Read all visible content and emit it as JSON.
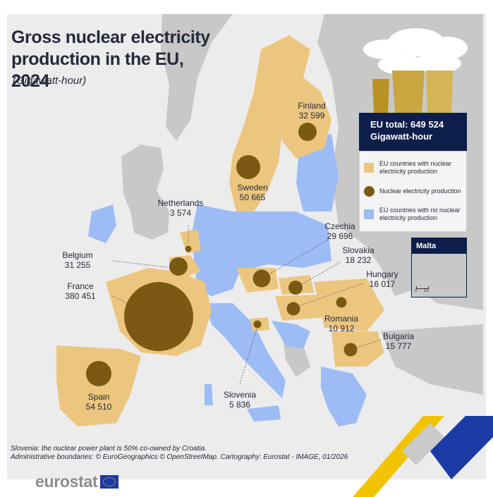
{
  "title": "Gross nuclear electricity production in the EU, 2024",
  "subtitle": "(Gigawatt-hour)",
  "eu_total": {
    "line1": "EU total: 649 524",
    "line2": "Gigawatt-hour"
  },
  "legend": {
    "with_nuclear": "EU countries with nuclear electricity production",
    "bubble": "Nuclear electricity production",
    "no_nuclear": "EU countries with no nuclear electricity production"
  },
  "colors": {
    "with_nuclear": "#ecc67f",
    "no_nuclear": "#9dbcf5",
    "bubble": "#7a5a12",
    "non_eu": "#c8c8c8",
    "sea": "#ececec",
    "header": "#0e1e4a"
  },
  "inset": {
    "title": "Malta",
    "scale": [
      "0",
      "10"
    ]
  },
  "countries": [
    {
      "name": "Finland",
      "value": "32 599"
    },
    {
      "name": "Sweden",
      "value": "50 665"
    },
    {
      "name": "Netherlands",
      "value": "3 574"
    },
    {
      "name": "Czechia",
      "value": "29 696"
    },
    {
      "name": "Belgium",
      "value": "31 255"
    },
    {
      "name": "Slovakia",
      "value": "18 232"
    },
    {
      "name": "France",
      "value": "380 451"
    },
    {
      "name": "Hungary",
      "value": "16 017"
    },
    {
      "name": "Romania",
      "value": "10 912"
    },
    {
      "name": "Bulgaria",
      "value": "15 777"
    },
    {
      "name": "Spain",
      "value": "54 510"
    },
    {
      "name": "Slovenia",
      "value": "5 836"
    }
  ],
  "footnote": {
    "line1": "Slovenia: the nuclear power plant is 50% co-owned by Croatia.",
    "line2": "Administrative boundaries: © EuroGeographics © OpenStreetMap. Cartography: Eurostat - IMAGE, 01/2026"
  },
  "brand": "eurostat"
}
